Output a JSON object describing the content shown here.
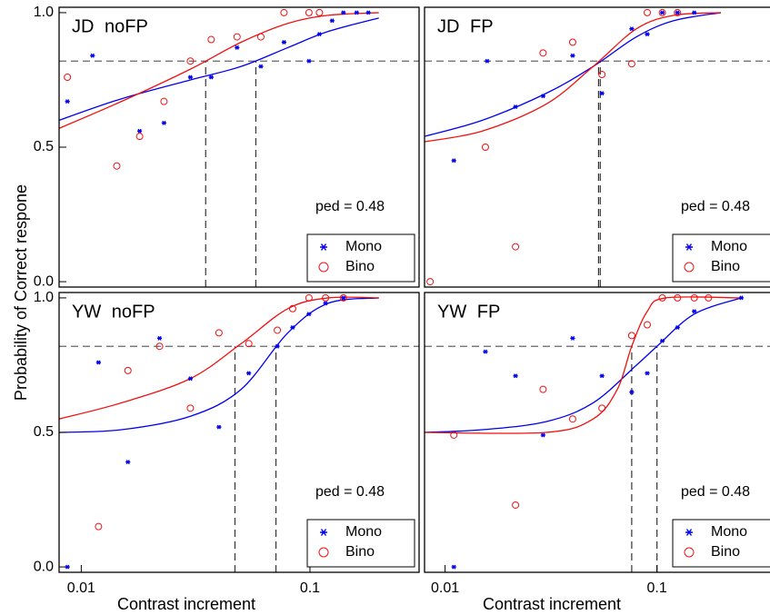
{
  "chart_data": [
    {
      "type": "scatter",
      "title": "JD noFP",
      "annotation": "ped = 0.48",
      "ylabel": "Probability of Correct respone",
      "log_x": true,
      "xlim": [
        0.008,
        0.3
      ],
      "ylim": [
        -0.02,
        1.02
      ],
      "yticks": [
        {
          "value": 0,
          "label": "0.0"
        },
        0.5,
        {
          "value": 1,
          "label": "1.0"
        }
      ],
      "criterion": 0.82,
      "legend": "lower right",
      "series": [
        {
          "name": "Mono",
          "color": "#0000ee",
          "marker": "asterisk",
          "x": [
            0.0087,
            0.0112,
            0.018,
            0.023,
            0.03,
            0.037,
            0.048,
            0.061,
            0.077,
            0.099,
            0.11,
            0.125,
            0.14,
            0.16,
            0.18
          ],
          "values": [
            0.67,
            0.84,
            0.56,
            0.59,
            0.76,
            0.76,
            0.87,
            0.8,
            0.89,
            0.82,
            0.92,
            0.97,
            1.0,
            1.0,
            1.0
          ],
          "fit": {
            "x": [
              0.008,
              0.015,
              0.03,
              0.05,
              0.08,
              0.12,
              0.2
            ],
            "values": [
              0.6,
              0.68,
              0.75,
              0.8,
              0.87,
              0.93,
              0.98
            ]
          },
          "threshold": 0.058
        },
        {
          "name": "Bino",
          "color": "#ee1111",
          "marker": "circle",
          "x": [
            0.0087,
            0.0143,
            0.018,
            0.023,
            0.03,
            0.037,
            0.048,
            0.061,
            0.077,
            0.099,
            0.11
          ],
          "values": [
            0.76,
            0.43,
            0.54,
            0.67,
            0.82,
            0.9,
            0.91,
            0.91,
            1.0,
            1.0,
            1.0
          ],
          "fit": {
            "x": [
              0.008,
              0.015,
              0.03,
              0.05,
              0.08,
              0.12,
              0.2
            ],
            "values": [
              0.57,
              0.67,
              0.79,
              0.89,
              0.96,
              0.99,
              1.0
            ]
          },
          "threshold": 0.035
        }
      ]
    },
    {
      "type": "scatter",
      "title": "JD FP",
      "annotation": "ped = 0.48",
      "log_x": true,
      "xlim": [
        0.008,
        0.4
      ],
      "ylim": [
        -0.02,
        1.02
      ],
      "criterion": 0.82,
      "legend": "lower right",
      "series": [
        {
          "name": "Mono",
          "color": "#0000ee",
          "marker": "asterisk",
          "x": [
            0.011,
            0.0158,
            0.0215,
            0.029,
            0.04,
            0.055,
            0.076,
            0.09,
            0.106,
            0.125,
            0.15
          ],
          "values": [
            0.45,
            0.82,
            0.65,
            0.69,
            0.84,
            0.7,
            0.94,
            0.92,
            1.0,
            1.0,
            1.0
          ],
          "fit": {
            "x": [
              0.008,
              0.015,
              0.03,
              0.05,
              0.08,
              0.12,
              0.2
            ],
            "values": [
              0.54,
              0.6,
              0.7,
              0.8,
              0.91,
              0.97,
              1.0
            ]
          },
          "threshold": 0.054
        },
        {
          "name": "Bino",
          "color": "#ee1111",
          "marker": "circle",
          "x": [
            0.0085,
            0.0155,
            0.0215,
            0.029,
            0.04,
            0.055,
            0.076,
            0.09,
            0.106,
            0.125
          ],
          "values": [
            0.0,
            0.5,
            0.13,
            0.85,
            0.89,
            0.77,
            0.81,
            1.0,
            1.0,
            1.0
          ],
          "fit": {
            "x": [
              0.008,
              0.015,
              0.03,
              0.05,
              0.08,
              0.12,
              0.2
            ],
            "values": [
              0.52,
              0.56,
              0.66,
              0.8,
              0.94,
              0.99,
              1.0
            ]
          },
          "threshold": 0.053
        }
      ]
    },
    {
      "type": "scatter",
      "title": "YW noFP",
      "annotation": "ped = 0.48",
      "xlabel": "Contrast increment",
      "log_x": true,
      "xlim": [
        0.008,
        0.3
      ],
      "ylim": [
        -0.02,
        1.02
      ],
      "xticks": [
        0.01,
        0.1
      ],
      "yticks": [
        {
          "value": 0,
          "label": "0.0"
        },
        0.5,
        {
          "value": 1,
          "label": "1.0"
        }
      ],
      "criterion": 0.82,
      "legend": "lower right",
      "series": [
        {
          "name": "Mono",
          "color": "#0000ee",
          "marker": "asterisk",
          "x": [
            0.0087,
            0.0119,
            0.016,
            0.022,
            0.03,
            0.04,
            0.054,
            0.072,
            0.084,
            0.099,
            0.117,
            0.14
          ],
          "values": [
            0.0,
            0.76,
            0.39,
            0.85,
            0.7,
            0.52,
            0.72,
            0.82,
            0.89,
            0.94,
            0.98,
            1.0
          ],
          "fit": {
            "x": [
              0.008,
              0.015,
              0.03,
              0.05,
              0.08,
              0.12,
              0.2
            ],
            "values": [
              0.5,
              0.51,
              0.56,
              0.66,
              0.87,
              0.98,
              1.0
            ]
          },
          "threshold": 0.071
        },
        {
          "name": "Bino",
          "color": "#ee1111",
          "marker": "circle",
          "x": [
            0.0119,
            0.016,
            0.022,
            0.03,
            0.04,
            0.054,
            0.072,
            0.084,
            0.099,
            0.117,
            0.14
          ],
          "values": [
            0.15,
            0.73,
            0.82,
            0.59,
            0.87,
            0.83,
            0.88,
            0.96,
            1.0,
            1.0,
            1.0
          ],
          "fit": {
            "x": [
              0.008,
              0.015,
              0.03,
              0.05,
              0.08,
              0.12,
              0.2
            ],
            "values": [
              0.55,
              0.61,
              0.7,
              0.83,
              0.96,
              1.0,
              1.0
            ]
          },
          "threshold": 0.047
        }
      ]
    },
    {
      "type": "scatter",
      "title": "YW FP",
      "annotation": "ped = 0.48",
      "xlabel": "Contrast increment",
      "log_x": true,
      "xlim": [
        0.008,
        0.4
      ],
      "ylim": [
        -0.02,
        1.02
      ],
      "xticks": [
        0.01,
        0.1
      ],
      "criterion": 0.82,
      "legend": "lower right",
      "series": [
        {
          "name": "Mono",
          "color": "#0000ee",
          "marker": "asterisk",
          "x": [
            0.011,
            0.0155,
            0.0215,
            0.029,
            0.04,
            0.055,
            0.076,
            0.09,
            0.106,
            0.125,
            0.15,
            0.25
          ],
          "values": [
            0.0,
            0.8,
            0.71,
            0.49,
            0.85,
            0.71,
            0.65,
            0.72,
            0.84,
            0.89,
            0.95,
            1.0
          ],
          "fit": {
            "x": [
              0.008,
              0.015,
              0.03,
              0.05,
              0.08,
              0.1,
              0.15,
              0.25
            ],
            "values": [
              0.5,
              0.51,
              0.54,
              0.61,
              0.75,
              0.82,
              0.94,
              1.0
            ]
          },
          "threshold": 0.1
        },
        {
          "name": "Bino",
          "color": "#ee1111",
          "marker": "circle",
          "x": [
            0.011,
            0.0215,
            0.029,
            0.04,
            0.055,
            0.076,
            0.09,
            0.106,
            0.125,
            0.15,
            0.175
          ],
          "values": [
            0.49,
            0.23,
            0.66,
            0.55,
            0.59,
            0.86,
            0.9,
            1.0,
            1.0,
            1.0,
            1.0
          ],
          "fit": {
            "x": [
              0.008,
              0.03,
              0.05,
              0.065,
              0.076,
              0.09,
              0.11,
              0.25
            ],
            "values": [
              0.5,
              0.5,
              0.55,
              0.66,
              0.82,
              0.95,
              1.0,
              1.0
            ]
          },
          "threshold": 0.076
        }
      ]
    }
  ]
}
